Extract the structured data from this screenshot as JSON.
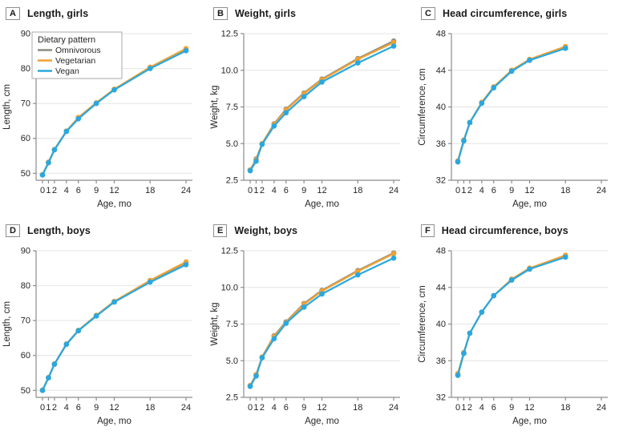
{
  "figure": {
    "legend": {
      "title": "Dietary pattern",
      "entries": [
        {
          "label": "Omnivorous",
          "color": "#8e8b80"
        },
        {
          "label": "Vegetarian",
          "color": "#f0a132"
        },
        {
          "label": "Vegan",
          "color": "#29a8e0"
        }
      ]
    },
    "colors": {
      "grid": "#e4e4e4",
      "axis": "#8c8c8c",
      "text": "#262626"
    }
  },
  "chart_data": [
    {
      "panel": "A",
      "title": "Length, girls",
      "type": "line",
      "xlabel": "Age, mo",
      "ylabel": "Length, cm",
      "xlim": [
        0,
        24
      ],
      "x_ticks": [
        0,
        1,
        2,
        4,
        6,
        9,
        12,
        18,
        24
      ],
      "x": [
        0,
        1,
        2,
        4,
        6,
        9,
        12,
        18,
        24
      ],
      "ylim": [
        48,
        90
      ],
      "yticks": [
        50,
        60,
        70,
        80,
        90
      ],
      "ytick_labels": [
        "50",
        "60",
        "70",
        "80",
        "90"
      ],
      "grid": true,
      "legend_position": "top-left",
      "show_legend": true,
      "series": [
        {
          "name": "Omnivorous",
          "color": "#8e8b80",
          "values": [
            49.6,
            53.1,
            56.8,
            62.0,
            65.8,
            70.1,
            74.0,
            80.2,
            85.6
          ]
        },
        {
          "name": "Vegetarian",
          "color": "#f0a132",
          "values": [
            49.6,
            53.2,
            56.8,
            62.1,
            66.0,
            70.2,
            74.1,
            80.4,
            85.7
          ]
        },
        {
          "name": "Vegan",
          "color": "#29a8e0",
          "values": [
            49.5,
            53.0,
            56.7,
            62.0,
            65.6,
            70.0,
            73.9,
            80.0,
            85.1
          ]
        }
      ]
    },
    {
      "panel": "B",
      "title": "Weight, girls",
      "type": "line",
      "xlabel": "Age, mo",
      "ylabel": "Weight, kg",
      "xlim": [
        0,
        24
      ],
      "x_ticks": [
        0,
        1,
        2,
        4,
        6,
        9,
        12,
        18,
        24
      ],
      "x": [
        0,
        1,
        2,
        4,
        6,
        9,
        12,
        18,
        24
      ],
      "ylim": [
        2.5,
        12.5
      ],
      "yticks": [
        2.5,
        5.0,
        7.5,
        10.0,
        12.5
      ],
      "ytick_labels": [
        "2.5",
        "5.0",
        "7.5",
        "10.0",
        "12.5"
      ],
      "grid": true,
      "show_legend": false,
      "series": [
        {
          "name": "Omnivorous",
          "color": "#8e8b80",
          "values": [
            3.2,
            3.95,
            5.0,
            6.35,
            7.35,
            8.45,
            9.4,
            10.8,
            12.0
          ]
        },
        {
          "name": "Vegetarian",
          "color": "#f0a132",
          "values": [
            3.2,
            3.9,
            5.0,
            6.3,
            7.3,
            8.4,
            9.35,
            10.75,
            11.9
          ]
        },
        {
          "name": "Vegan",
          "color": "#29a8e0",
          "values": [
            3.15,
            3.8,
            4.95,
            6.2,
            7.1,
            8.2,
            9.2,
            10.5,
            11.65
          ]
        }
      ]
    },
    {
      "panel": "C",
      "title": "Head circumference, girls",
      "type": "line",
      "xlabel": "Age, mo",
      "ylabel": "Circumference, cm",
      "xlim": [
        0,
        24
      ],
      "x_ticks": [
        0,
        1,
        2,
        4,
        6,
        9,
        12,
        18,
        24
      ],
      "x": [
        0,
        1,
        2,
        4,
        6,
        9,
        12,
        18
      ],
      "ylim": [
        32,
        48
      ],
      "yticks": [
        32,
        36,
        40,
        44,
        48
      ],
      "ytick_labels": [
        "32",
        "36",
        "40",
        "44",
        "48"
      ],
      "grid": true,
      "show_legend": false,
      "series": [
        {
          "name": "Omnivorous",
          "color": "#8e8b80",
          "values": [
            34.1,
            36.3,
            38.3,
            40.5,
            42.1,
            44.0,
            45.1,
            46.5
          ]
        },
        {
          "name": "Vegetarian",
          "color": "#f0a132",
          "values": [
            34.1,
            36.4,
            38.3,
            40.5,
            42.2,
            44.0,
            45.2,
            46.6
          ]
        },
        {
          "name": "Vegan",
          "color": "#29a8e0",
          "values": [
            34.0,
            36.3,
            38.3,
            40.4,
            42.1,
            43.9,
            45.1,
            46.4
          ]
        }
      ]
    },
    {
      "panel": "D",
      "title": "Length, boys",
      "type": "line",
      "xlabel": "Age, mo",
      "ylabel": "Length, cm",
      "xlim": [
        0,
        24
      ],
      "x_ticks": [
        0,
        1,
        2,
        4,
        6,
        9,
        12,
        18,
        24
      ],
      "x": [
        0,
        1,
        2,
        4,
        6,
        9,
        12,
        18,
        24
      ],
      "ylim": [
        48,
        90
      ],
      "yticks": [
        50,
        60,
        70,
        80,
        90
      ],
      "ytick_labels": [
        "50",
        "60",
        "70",
        "80",
        "90"
      ],
      "grid": true,
      "show_legend": false,
      "series": [
        {
          "name": "Omnivorous",
          "color": "#8e8b80",
          "values": [
            50.0,
            53.6,
            57.5,
            63.2,
            67.1,
            71.4,
            75.4,
            81.4,
            86.6
          ]
        },
        {
          "name": "Vegetarian",
          "color": "#f0a132",
          "values": [
            50.1,
            53.7,
            57.6,
            63.3,
            67.2,
            71.5,
            75.5,
            81.5,
            86.8
          ]
        },
        {
          "name": "Vegan",
          "color": "#29a8e0",
          "values": [
            50.0,
            53.6,
            57.5,
            63.2,
            67.1,
            71.3,
            75.3,
            81.0,
            86.0
          ]
        }
      ]
    },
    {
      "panel": "E",
      "title": "Weight, boys",
      "type": "line",
      "xlabel": "Age, mo",
      "ylabel": "Weight, kg",
      "xlim": [
        0,
        24
      ],
      "x_ticks": [
        0,
        1,
        2,
        4,
        6,
        9,
        12,
        18,
        24
      ],
      "x": [
        0,
        1,
        2,
        4,
        6,
        9,
        12,
        18,
        24
      ],
      "ylim": [
        2.5,
        12.5
      ],
      "yticks": [
        2.5,
        5.0,
        7.5,
        10.0,
        12.5
      ],
      "ytick_labels": [
        "2.5",
        "5.0",
        "7.5",
        "10.0",
        "12.5"
      ],
      "grid": true,
      "show_legend": false,
      "series": [
        {
          "name": "Omnivorous",
          "color": "#8e8b80",
          "values": [
            3.3,
            4.05,
            5.25,
            6.7,
            7.65,
            8.9,
            9.8,
            11.15,
            12.35
          ]
        },
        {
          "name": "Vegetarian",
          "color": "#f0a132",
          "values": [
            3.3,
            4.05,
            5.25,
            6.65,
            7.6,
            8.85,
            9.75,
            11.1,
            12.3
          ]
        },
        {
          "name": "Vegan",
          "color": "#29a8e0",
          "values": [
            3.25,
            3.95,
            5.2,
            6.5,
            7.55,
            8.65,
            9.55,
            10.85,
            12.0
          ]
        }
      ]
    },
    {
      "panel": "F",
      "title": "Head circumference, boys",
      "type": "line",
      "xlabel": "Age, mo",
      "ylabel": "Circumference, cm",
      "xlim": [
        0,
        24
      ],
      "x_ticks": [
        0,
        1,
        2,
        4,
        6,
        9,
        12,
        18,
        24
      ],
      "x": [
        0,
        1,
        2,
        4,
        6,
        9,
        12,
        18
      ],
      "ylim": [
        32,
        48
      ],
      "yticks": [
        32,
        36,
        40,
        44,
        48
      ],
      "ytick_labels": [
        "32",
        "36",
        "40",
        "44",
        "48"
      ],
      "grid": true,
      "show_legend": false,
      "series": [
        {
          "name": "Omnivorous",
          "color": "#8e8b80",
          "values": [
            34.5,
            36.8,
            39.0,
            41.3,
            43.1,
            44.8,
            46.0,
            47.5
          ]
        },
        {
          "name": "Vegetarian",
          "color": "#f0a132",
          "values": [
            34.6,
            36.9,
            39.0,
            41.3,
            43.1,
            44.9,
            46.1,
            47.5
          ]
        },
        {
          "name": "Vegan",
          "color": "#29a8e0",
          "values": [
            34.4,
            36.8,
            39.0,
            41.3,
            43.1,
            44.8,
            46.0,
            47.3
          ]
        }
      ]
    }
  ]
}
